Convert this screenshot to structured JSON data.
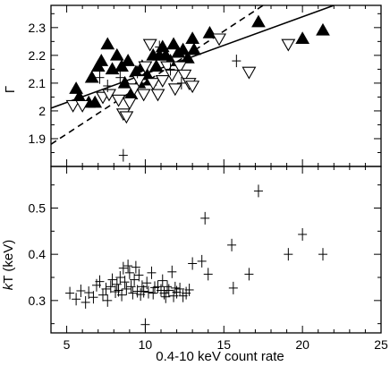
{
  "chart_data": [
    {
      "type": "scatter",
      "panel": "top",
      "xlim": [
        4,
        25
      ],
      "ylim": [
        1.8,
        2.38
      ],
      "grid": false,
      "ylabel": "Γ",
      "xticks": [
        5,
        10,
        15,
        20,
        25
      ],
      "yticks": [
        "1.9",
        "2",
        "2.1",
        "2.2",
        "2.3"
      ],
      "series": [
        {
          "marker": "filled-triangle-up",
          "points": [
            [
              5.6,
              2.08
            ],
            [
              5.8,
              2.05
            ],
            [
              6.4,
              2.03
            ],
            [
              6.6,
              2.12
            ],
            [
              6.8,
              2.03
            ],
            [
              7.0,
              2.16
            ],
            [
              7.2,
              2.18
            ],
            [
              7.6,
              2.24
            ],
            [
              7.9,
              2.15
            ],
            [
              8.2,
              2.2
            ],
            [
              8.5,
              2.16
            ],
            [
              8.7,
              2.1
            ],
            [
              8.9,
              2.18
            ],
            [
              9.1,
              2.06
            ],
            [
              9.4,
              2.14
            ],
            [
              9.6,
              2.1
            ],
            [
              9.8,
              2.16
            ],
            [
              10.1,
              2.13
            ],
            [
              10.3,
              2.11
            ],
            [
              10.5,
              2.2
            ],
            [
              10.7,
              2.16
            ],
            [
              10.9,
              2.2
            ],
            [
              11.1,
              2.23
            ],
            [
              11.3,
              2.2
            ],
            [
              11.6,
              2.18
            ],
            [
              11.8,
              2.24
            ],
            [
              12.1,
              2.21
            ],
            [
              12.4,
              2.22
            ],
            [
              12.7,
              2.19
            ],
            [
              13.0,
              2.26
            ],
            [
              13.1,
              2.22
            ],
            [
              14.1,
              2.28
            ],
            [
              17.2,
              2.32
            ],
            [
              20.0,
              2.26
            ],
            [
              21.3,
              2.29
            ]
          ]
        },
        {
          "marker": "open-triangle-down",
          "points": [
            [
              5.4,
              2.02
            ],
            [
              6.0,
              2.02
            ],
            [
              7.3,
              2.05
            ],
            [
              7.7,
              2.06
            ],
            [
              8.3,
              2.04
            ],
            [
              8.6,
              1.99
            ],
            [
              8.8,
              1.98
            ],
            [
              9.0,
              2.03
            ],
            [
              9.3,
              2.08
            ],
            [
              9.6,
              2.11
            ],
            [
              9.9,
              2.06
            ],
            [
              10.0,
              2.16
            ],
            [
              10.3,
              2.24
            ],
            [
              10.5,
              2.1
            ],
            [
              10.8,
              2.06
            ],
            [
              11.1,
              2.11
            ],
            [
              11.4,
              2.16
            ],
            [
              11.7,
              2.13
            ],
            [
              11.9,
              2.08
            ],
            [
              12.2,
              2.16
            ],
            [
              12.5,
              2.13
            ],
            [
              12.8,
              2.1
            ],
            [
              13.0,
              2.09
            ],
            [
              14.7,
              2.26
            ],
            [
              16.6,
              2.14
            ],
            [
              19.1,
              2.24
            ]
          ]
        },
        {
          "marker": "cross",
          "points": [
            [
              7.1,
              2.12
            ],
            [
              7.6,
              2.09
            ],
            [
              8.4,
              2.12
            ],
            [
              9.5,
              2.14
            ],
            [
              10.9,
              2.23
            ],
            [
              11.6,
              2.15
            ],
            [
              12.3,
              2.1
            ],
            [
              15.8,
              2.18
            ],
            [
              8.6,
              1.84
            ]
          ]
        }
      ],
      "fit_lines": [
        {
          "style": "solid",
          "points": [
            [
              4,
              2.01
            ],
            [
              22,
              2.38
            ]
          ]
        },
        {
          "style": "dashed",
          "points": [
            [
              4,
              1.88
            ],
            [
              17.5,
              2.38
            ]
          ]
        }
      ]
    },
    {
      "type": "scatter",
      "panel": "bottom",
      "xlim": [
        4,
        25
      ],
      "ylim": [
        0.23,
        0.59
      ],
      "grid": false,
      "xlabel": "0.4-10 keV count rate",
      "ylabel": "kT (keV)",
      "xticks": [
        5,
        10,
        15,
        20,
        25
      ],
      "yticks": [
        "0.3",
        "0.4",
        "0.5"
      ],
      "series": [
        {
          "marker": "cross",
          "points": [
            [
              5.2,
              0.316
            ],
            [
              5.6,
              0.303
            ],
            [
              5.9,
              0.321
            ],
            [
              6.2,
              0.296
            ],
            [
              6.4,
              0.317
            ],
            [
              6.7,
              0.307
            ],
            [
              6.9,
              0.333
            ],
            [
              7.1,
              0.341
            ],
            [
              7.3,
              0.312
            ],
            [
              7.5,
              0.325
            ],
            [
              7.6,
              0.3
            ],
            [
              7.8,
              0.33
            ],
            [
              7.9,
              0.345
            ],
            [
              8.1,
              0.319
            ],
            [
              8.2,
              0.335
            ],
            [
              8.3,
              0.322
            ],
            [
              8.4,
              0.35
            ],
            [
              8.5,
              0.312
            ],
            [
              8.6,
              0.37
            ],
            [
              8.7,
              0.34
            ],
            [
              8.8,
              0.325
            ],
            [
              8.9,
              0.375
            ],
            [
              9.0,
              0.36
            ],
            [
              9.1,
              0.33
            ],
            [
              9.2,
              0.316
            ],
            [
              9.3,
              0.345
            ],
            [
              9.4,
              0.372
            ],
            [
              9.5,
              0.32
            ],
            [
              9.6,
              0.355
            ],
            [
              9.7,
              0.313
            ],
            [
              9.8,
              0.33
            ],
            [
              9.9,
              0.32
            ],
            [
              10.0,
              0.248
            ],
            [
              10.1,
              0.338
            ],
            [
              10.2,
              0.318
            ],
            [
              10.4,
              0.36
            ],
            [
              10.5,
              0.316
            ],
            [
              10.6,
              0.328
            ],
            [
              10.8,
              0.33
            ],
            [
              11.0,
              0.322
            ],
            [
              11.1,
              0.343
            ],
            [
              11.2,
              0.316
            ],
            [
              11.3,
              0.308
            ],
            [
              11.4,
              0.33
            ],
            [
              11.5,
              0.322
            ],
            [
              11.7,
              0.362
            ],
            [
              11.8,
              0.31
            ],
            [
              11.9,
              0.327
            ],
            [
              12.0,
              0.318
            ],
            [
              12.2,
              0.325
            ],
            [
              12.4,
              0.31
            ],
            [
              12.6,
              0.316
            ],
            [
              12.8,
              0.323
            ],
            [
              13.0,
              0.38
            ],
            [
              13.6,
              0.385
            ],
            [
              13.8,
              0.478
            ],
            [
              14.0,
              0.357
            ],
            [
              15.5,
              0.42
            ],
            [
              15.6,
              0.327
            ],
            [
              16.6,
              0.357
            ],
            [
              17.2,
              0.537
            ],
            [
              19.1,
              0.4
            ],
            [
              20.0,
              0.443
            ],
            [
              21.3,
              0.4
            ]
          ]
        }
      ]
    }
  ]
}
